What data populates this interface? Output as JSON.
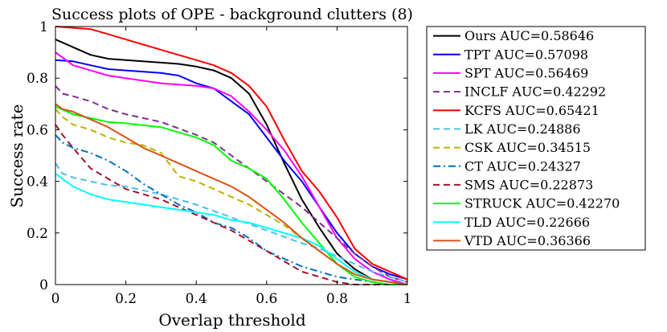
{
  "chart_data": {
    "type": "line",
    "title": "Success plots of OPE - background clutters (8)",
    "xlabel": "Overlap threshold",
    "ylabel": "Success rate",
    "xlim": [
      0,
      1
    ],
    "ylim": [
      0,
      1
    ],
    "xticks": [
      0,
      0.2,
      0.4,
      0.6,
      0.8,
      1
    ],
    "yticks": [
      0,
      0.2,
      0.4,
      0.6,
      0.8,
      1
    ],
    "xtick_labels": [
      "0",
      "0.2",
      "0.4",
      "0.6",
      "0.8",
      "1"
    ],
    "ytick_labels": [
      "0",
      "0.2",
      "0.4",
      "0.6",
      "0.8",
      "1"
    ],
    "legend_position": "outside-right",
    "series": [
      {
        "name": "Ours AUC=0.58646",
        "color": "#000000",
        "dash": "solid",
        "x": [
          0,
          0.05,
          0.1,
          0.15,
          0.2,
          0.3,
          0.35,
          0.4,
          0.45,
          0.5,
          0.55,
          0.6,
          0.65,
          0.7,
          0.75,
          0.8,
          0.85,
          0.9,
          0.95,
          1.0
        ],
        "y": [
          0.95,
          0.92,
          0.89,
          0.875,
          0.87,
          0.86,
          0.855,
          0.845,
          0.83,
          0.8,
          0.74,
          0.62,
          0.47,
          0.33,
          0.22,
          0.12,
          0.06,
          0.02,
          0.01,
          0.0
        ]
      },
      {
        "name": "TPT AUC=0.57098",
        "color": "#0000ff",
        "dash": "solid",
        "x": [
          0,
          0.05,
          0.1,
          0.15,
          0.2,
          0.3,
          0.35,
          0.4,
          0.45,
          0.5,
          0.55,
          0.6,
          0.65,
          0.7,
          0.75,
          0.8,
          0.85,
          0.9,
          0.95,
          1.0
        ],
        "y": [
          0.87,
          0.865,
          0.85,
          0.835,
          0.83,
          0.82,
          0.81,
          0.78,
          0.76,
          0.71,
          0.66,
          0.57,
          0.48,
          0.4,
          0.3,
          0.2,
          0.12,
          0.07,
          0.04,
          0.02
        ]
      },
      {
        "name": "SPT AUC=0.56469",
        "color": "#ff00ff",
        "dash": "solid",
        "x": [
          0,
          0.05,
          0.1,
          0.15,
          0.2,
          0.3,
          0.35,
          0.4,
          0.45,
          0.5,
          0.55,
          0.6,
          0.65,
          0.7,
          0.75,
          0.8,
          0.85,
          0.9,
          0.95,
          1.0
        ],
        "y": [
          0.9,
          0.85,
          0.83,
          0.81,
          0.8,
          0.78,
          0.775,
          0.77,
          0.76,
          0.73,
          0.67,
          0.6,
          0.52,
          0.42,
          0.3,
          0.18,
          0.1,
          0.05,
          0.02,
          0.0
        ]
      },
      {
        "name": "INCLF AUC=0.42292",
        "color": "#7e2f8e",
        "dash": "dashed",
        "x": [
          0,
          0.02,
          0.05,
          0.1,
          0.15,
          0.2,
          0.3,
          0.4,
          0.45,
          0.5,
          0.55,
          0.6,
          0.65,
          0.7,
          0.75,
          0.8,
          0.85,
          0.9,
          0.95,
          1.0
        ],
        "y": [
          0.77,
          0.74,
          0.73,
          0.71,
          0.68,
          0.66,
          0.63,
          0.58,
          0.55,
          0.5,
          0.45,
          0.4,
          0.35,
          0.3,
          0.24,
          0.18,
          0.12,
          0.07,
          0.03,
          0.01
        ]
      },
      {
        "name": "KCFS AUC=0.65421",
        "color": "#ff0000",
        "dash": "solid",
        "x": [
          0,
          0.05,
          0.1,
          0.15,
          0.2,
          0.25,
          0.3,
          0.35,
          0.4,
          0.45,
          0.5,
          0.55,
          0.6,
          0.65,
          0.7,
          0.75,
          0.8,
          0.85,
          0.9,
          0.95,
          1.0
        ],
        "y": [
          1.0,
          0.995,
          0.99,
          0.97,
          0.95,
          0.93,
          0.91,
          0.89,
          0.87,
          0.85,
          0.82,
          0.77,
          0.69,
          0.56,
          0.44,
          0.36,
          0.26,
          0.14,
          0.08,
          0.05,
          0.02
        ]
      },
      {
        "name": "LK AUC=0.24886",
        "color": "#4dbeee",
        "dash": "dashed",
        "x": [
          0,
          0.02,
          0.05,
          0.1,
          0.15,
          0.2,
          0.3,
          0.4,
          0.5,
          0.6,
          0.7,
          0.75,
          0.8,
          0.85,
          0.9,
          0.95,
          1.0
        ],
        "y": [
          0.47,
          0.43,
          0.415,
          0.4,
          0.385,
          0.38,
          0.35,
          0.31,
          0.26,
          0.21,
          0.16,
          0.14,
          0.11,
          0.08,
          0.05,
          0.03,
          0.01
        ]
      },
      {
        "name": "CSK AUC=0.34515",
        "color": "#bdb300",
        "dash": "dashed",
        "x": [
          0,
          0.02,
          0.05,
          0.1,
          0.15,
          0.2,
          0.25,
          0.3,
          0.35,
          0.4,
          0.45,
          0.5,
          0.55,
          0.6,
          0.65,
          0.7,
          0.75,
          0.8,
          0.85,
          0.9,
          0.95,
          1.0
        ],
        "y": [
          0.68,
          0.65,
          0.62,
          0.6,
          0.57,
          0.55,
          0.54,
          0.51,
          0.42,
          0.4,
          0.37,
          0.34,
          0.31,
          0.27,
          0.23,
          0.18,
          0.13,
          0.08,
          0.04,
          0.02,
          0.01,
          0.0
        ]
      },
      {
        "name": "CT AUC=0.24327",
        "color": "#0072bd",
        "dash": "dashdot",
        "x": [
          0,
          0.02,
          0.05,
          0.1,
          0.15,
          0.2,
          0.25,
          0.3,
          0.35,
          0.4,
          0.45,
          0.5,
          0.55,
          0.6,
          0.65,
          0.7,
          0.75,
          0.8,
          0.85,
          0.9,
          0.95,
          1.0
        ],
        "y": [
          0.58,
          0.55,
          0.53,
          0.51,
          0.48,
          0.44,
          0.39,
          0.35,
          0.31,
          0.28,
          0.24,
          0.22,
          0.18,
          0.13,
          0.1,
          0.07,
          0.05,
          0.03,
          0.02,
          0.01,
          0.0,
          0.0
        ]
      },
      {
        "name": "SMS AUC=0.22873",
        "color": "#a2142f",
        "dash": "dashed",
        "x": [
          0,
          0.02,
          0.05,
          0.1,
          0.15,
          0.2,
          0.25,
          0.3,
          0.35,
          0.4,
          0.45,
          0.5,
          0.55,
          0.6,
          0.65,
          0.7,
          0.75,
          0.8,
          0.85,
          0.9,
          0.95,
          1.0
        ],
        "y": [
          0.62,
          0.58,
          0.53,
          0.45,
          0.41,
          0.37,
          0.35,
          0.33,
          0.3,
          0.27,
          0.24,
          0.21,
          0.17,
          0.13,
          0.09,
          0.05,
          0.03,
          0.01,
          0.0,
          0.0,
          0.0,
          0.0
        ]
      },
      {
        "name": "STRUCK AUC=0.42270",
        "color": "#00ff00",
        "dash": "solid",
        "x": [
          0,
          0.05,
          0.1,
          0.15,
          0.2,
          0.3,
          0.35,
          0.4,
          0.45,
          0.5,
          0.55,
          0.6,
          0.65,
          0.7,
          0.75,
          0.8,
          0.85,
          0.9,
          0.95,
          1.0
        ],
        "y": [
          0.69,
          0.66,
          0.645,
          0.63,
          0.625,
          0.61,
          0.59,
          0.57,
          0.54,
          0.48,
          0.45,
          0.41,
          0.33,
          0.24,
          0.16,
          0.08,
          0.03,
          0.01,
          0.0,
          0.0
        ]
      },
      {
        "name": "TLD AUC=0.22666",
        "color": "#00ffff",
        "dash": "solid",
        "x": [
          0,
          0.02,
          0.05,
          0.1,
          0.15,
          0.2,
          0.25,
          0.3,
          0.35,
          0.4,
          0.45,
          0.5,
          0.55,
          0.6,
          0.65,
          0.7,
          0.75,
          0.8,
          0.85,
          0.9,
          0.95,
          1.0
        ],
        "y": [
          0.43,
          0.41,
          0.38,
          0.35,
          0.33,
          0.32,
          0.31,
          0.3,
          0.29,
          0.28,
          0.27,
          0.25,
          0.24,
          0.22,
          0.2,
          0.18,
          0.15,
          0.1,
          0.05,
          0.02,
          0.01,
          0.0
        ]
      },
      {
        "name": "VTD AUC=0.36366",
        "color": "#d95319",
        "dash": "solid",
        "x": [
          0,
          0.02,
          0.05,
          0.1,
          0.15,
          0.2,
          0.25,
          0.3,
          0.35,
          0.4,
          0.45,
          0.5,
          0.55,
          0.6,
          0.65,
          0.7,
          0.75,
          0.8,
          0.85,
          0.9,
          0.95,
          1.0
        ],
        "y": [
          0.7,
          0.68,
          0.67,
          0.64,
          0.61,
          0.57,
          0.53,
          0.5,
          0.47,
          0.44,
          0.41,
          0.38,
          0.34,
          0.29,
          0.24,
          0.18,
          0.13,
          0.08,
          0.04,
          0.02,
          0.01,
          0.0
        ]
      }
    ]
  }
}
